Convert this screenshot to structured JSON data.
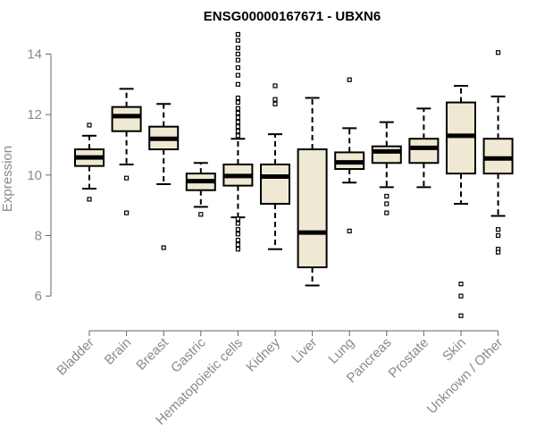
{
  "chart_data": {
    "type": "box",
    "title": "ENSG00000167671 - UBXN6",
    "xlabel": "",
    "ylabel": "Expression",
    "ylim": [
      5.0,
      14.9
    ],
    "yticks": [
      6,
      8,
      10,
      12,
      14
    ],
    "grid": false,
    "legend": "none",
    "colors": {
      "box_fill": "#efe9d3",
      "box_stroke": "#000000",
      "axis": "#666666",
      "text": "#8a8a8a"
    },
    "categories": [
      "Bladder",
      "Brain",
      "Breast",
      "Gastric",
      "Hematopoietic cells",
      "Kidney",
      "Liver",
      "Lung",
      "Pancreas",
      "Prostate",
      "Skin",
      "Unknown / Other"
    ],
    "boxes": [
      {
        "q1": 10.3,
        "median": 10.58,
        "q3": 10.85,
        "wlow": 9.55,
        "whigh": 11.3,
        "outliers": [
          11.65,
          9.2
        ]
      },
      {
        "q1": 11.45,
        "median": 11.95,
        "q3": 12.25,
        "wlow": 10.35,
        "whigh": 12.85,
        "outliers": [
          9.9,
          8.75
        ]
      },
      {
        "q1": 10.85,
        "median": 11.2,
        "q3": 11.6,
        "wlow": 9.7,
        "whigh": 12.35,
        "outliers": [
          7.6
        ]
      },
      {
        "q1": 9.5,
        "median": 9.8,
        "q3": 10.05,
        "wlow": 8.95,
        "whigh": 10.4,
        "outliers": [
          8.7
        ]
      },
      {
        "q1": 9.65,
        "median": 9.97,
        "q3": 10.35,
        "wlow": 8.6,
        "whigh": 11.2,
        "outliers": [
          14.65,
          14.45,
          14.2,
          14.0,
          13.8,
          13.55,
          13.3,
          13.0,
          12.55,
          12.4,
          12.2,
          12.05,
          11.9,
          11.75,
          11.6,
          11.45,
          11.3,
          8.55,
          8.4,
          8.2,
          8.05,
          7.85,
          7.7,
          7.55
        ]
      },
      {
        "q1": 9.05,
        "median": 9.95,
        "q3": 10.35,
        "wlow": 7.55,
        "whigh": 11.35,
        "outliers": [
          12.95,
          12.5,
          12.35
        ]
      },
      {
        "q1": 6.95,
        "median": 8.1,
        "q3": 10.85,
        "wlow": 6.35,
        "whigh": 12.55,
        "outliers": []
      },
      {
        "q1": 10.2,
        "median": 10.42,
        "q3": 10.75,
        "wlow": 9.75,
        "whigh": 11.55,
        "outliers": [
          13.15,
          8.15
        ]
      },
      {
        "q1": 10.4,
        "median": 10.78,
        "q3": 10.95,
        "wlow": 9.6,
        "whigh": 11.75,
        "outliers": [
          9.3,
          9.05,
          8.75
        ]
      },
      {
        "q1": 10.4,
        "median": 10.9,
        "q3": 11.2,
        "wlow": 9.6,
        "whigh": 12.2,
        "outliers": []
      },
      {
        "q1": 10.05,
        "median": 11.3,
        "q3": 12.4,
        "wlow": 9.05,
        "whigh": 12.95,
        "outliers": [
          6.4,
          6.0,
          5.35
        ]
      },
      {
        "q1": 10.05,
        "median": 10.55,
        "q3": 11.2,
        "wlow": 8.65,
        "whigh": 12.6,
        "outliers": [
          14.05,
          8.2,
          8.0,
          7.55,
          7.45
        ]
      }
    ]
  }
}
